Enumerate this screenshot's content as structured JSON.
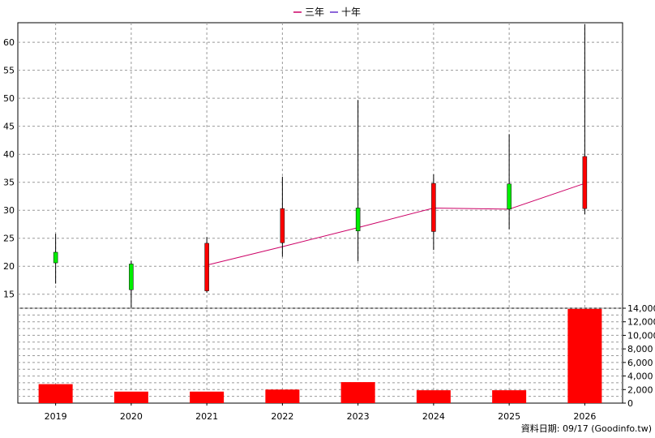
{
  "legend": [
    {
      "label": "三年",
      "color": "#cc0066"
    },
    {
      "label": "十年",
      "color": "#6633cc"
    }
  ],
  "source_note": "資料日期: 09/17  (Goodinfo.tw)",
  "colors": {
    "up": "#ff0000",
    "down": "#00ee00",
    "wick": "#000000",
    "volume": "#ff0000",
    "grid": "#999999"
  },
  "chart_data": [
    {
      "type": "candlestick",
      "title": "",
      "categories": [
        "2019",
        "2020",
        "2021",
        "2022",
        "2023",
        "2024",
        "2025",
        "2026"
      ],
      "ylim": [
        12.5,
        63.5
      ],
      "yticks": [
        15,
        20,
        25,
        30,
        35,
        40,
        45,
        50,
        55,
        60
      ],
      "grid": true,
      "legend_position": "top-center",
      "candles": [
        {
          "x": "2019",
          "open": 22.5,
          "close": 20.6,
          "high": 25.8,
          "low": 16.9
        },
        {
          "x": "2020",
          "open": 20.4,
          "close": 15.8,
          "high": 21.0,
          "low": 12.4
        },
        {
          "x": "2021",
          "open": 15.6,
          "close": 24.1,
          "high": 25.2,
          "low": 15.3
        },
        {
          "x": "2022",
          "open": 24.2,
          "close": 30.3,
          "high": 36.0,
          "low": 21.7
        },
        {
          "x": "2023",
          "open": 30.4,
          "close": 26.3,
          "high": 49.7,
          "low": 20.9
        },
        {
          "x": "2024",
          "open": 26.2,
          "close": 34.8,
          "high": 36.4,
          "low": 22.9
        },
        {
          "x": "2025",
          "open": 34.7,
          "close": 30.2,
          "high": 43.6,
          "low": 26.6
        },
        {
          "x": "2026",
          "open": 30.3,
          "close": 39.6,
          "high": 63.2,
          "low": 29.3
        }
      ],
      "series": [
        {
          "name": "三年",
          "values": [
            null,
            null,
            20.2,
            23.5,
            26.9,
            30.4,
            30.2,
            34.8
          ]
        },
        {
          "name": "十年",
          "values": [
            null,
            null,
            null,
            null,
            null,
            null,
            null,
            null
          ]
        }
      ]
    },
    {
      "type": "bar",
      "categories": [
        "2019",
        "2020",
        "2021",
        "2022",
        "2023",
        "2024",
        "2025",
        "2026"
      ],
      "values": [
        2800,
        1700,
        1700,
        2000,
        3100,
        1900,
        1900,
        13900
      ],
      "ylim": [
        0,
        14000
      ],
      "yticks": [
        0,
        2000,
        4000,
        6000,
        8000,
        10000,
        12000,
        14000
      ],
      "ytick_labels": [
        "0",
        "2,000",
        "4,000",
        "6,000",
        "8,000",
        "10,000",
        "12,000",
        "14,000"
      ]
    }
  ]
}
